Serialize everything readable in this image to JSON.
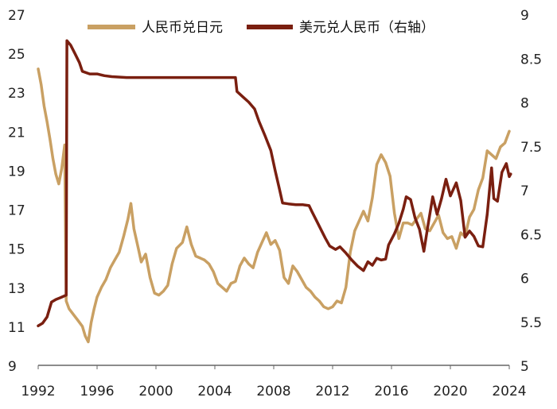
{
  "chart_data": {
    "type": "line",
    "title": "",
    "xlabel": "",
    "ylabel": "",
    "y2label": "",
    "xlim": [
      1992,
      2024
    ],
    "ylim": [
      9,
      27
    ],
    "y2lim": [
      5,
      9
    ],
    "x_ticks": [
      "1992",
      "1996",
      "2000",
      "2004",
      "2008",
      "2012",
      "2016",
      "2020",
      "2024"
    ],
    "y_ticks": [
      "9",
      "11",
      "13",
      "15",
      "17",
      "19",
      "21",
      "23",
      "25",
      "27"
    ],
    "y2_ticks": [
      "5",
      "5.5",
      "6",
      "6.5",
      "7",
      "7.5",
      "8",
      "8.5",
      "9"
    ],
    "legend_position": "top",
    "series": [
      {
        "name": "人民币兑日元",
        "axis": "left",
        "color": "#C9A063",
        "points": [
          [
            1992.0,
            24.2
          ],
          [
            1992.2,
            23.4
          ],
          [
            1992.4,
            22.3
          ],
          [
            1992.6,
            21.5
          ],
          [
            1992.8,
            20.6
          ],
          [
            1993.0,
            19.6
          ],
          [
            1993.2,
            18.8
          ],
          [
            1993.4,
            18.3
          ],
          [
            1993.6,
            19.1
          ],
          [
            1993.8,
            20.3
          ],
          [
            1993.9,
            12.3
          ],
          [
            1994.1,
            11.9
          ],
          [
            1994.4,
            11.6
          ],
          [
            1994.7,
            11.3
          ],
          [
            1995.0,
            11.0
          ],
          [
            1995.2,
            10.5
          ],
          [
            1995.4,
            10.2
          ],
          [
            1995.6,
            11.2
          ],
          [
            1995.8,
            11.9
          ],
          [
            1996.0,
            12.5
          ],
          [
            1996.3,
            13.0
          ],
          [
            1996.6,
            13.4
          ],
          [
            1996.9,
            14.0
          ],
          [
            1997.2,
            14.4
          ],
          [
            1997.5,
            14.8
          ],
          [
            1997.8,
            15.6
          ],
          [
            1998.1,
            16.5
          ],
          [
            1998.3,
            17.3
          ],
          [
            1998.5,
            16.0
          ],
          [
            1998.8,
            15.0
          ],
          [
            1999.0,
            14.3
          ],
          [
            1999.3,
            14.7
          ],
          [
            1999.6,
            13.5
          ],
          [
            1999.9,
            12.7
          ],
          [
            2000.2,
            12.6
          ],
          [
            2000.5,
            12.8
          ],
          [
            2000.8,
            13.1
          ],
          [
            2001.1,
            14.2
          ],
          [
            2001.4,
            15.0
          ],
          [
            2001.8,
            15.3
          ],
          [
            2002.1,
            16.1
          ],
          [
            2002.4,
            15.2
          ],
          [
            2002.7,
            14.6
          ],
          [
            2003.0,
            14.5
          ],
          [
            2003.3,
            14.4
          ],
          [
            2003.6,
            14.2
          ],
          [
            2003.9,
            13.8
          ],
          [
            2004.2,
            13.2
          ],
          [
            2004.5,
            13.0
          ],
          [
            2004.8,
            12.8
          ],
          [
            2005.1,
            13.2
          ],
          [
            2005.4,
            13.3
          ],
          [
            2005.7,
            14.1
          ],
          [
            2006.0,
            14.5
          ],
          [
            2006.3,
            14.2
          ],
          [
            2006.6,
            14.0
          ],
          [
            2006.9,
            14.8
          ],
          [
            2007.2,
            15.3
          ],
          [
            2007.5,
            15.8
          ],
          [
            2007.8,
            15.2
          ],
          [
            2008.1,
            15.4
          ],
          [
            2008.4,
            14.9
          ],
          [
            2008.7,
            13.5
          ],
          [
            2009.0,
            13.2
          ],
          [
            2009.3,
            14.1
          ],
          [
            2009.6,
            13.8
          ],
          [
            2009.9,
            13.4
          ],
          [
            2010.2,
            13.0
          ],
          [
            2010.5,
            12.8
          ],
          [
            2010.8,
            12.5
          ],
          [
            2011.1,
            12.3
          ],
          [
            2011.4,
            12.0
          ],
          [
            2011.7,
            11.9
          ],
          [
            2012.0,
            12.0
          ],
          [
            2012.3,
            12.3
          ],
          [
            2012.6,
            12.2
          ],
          [
            2012.9,
            13.0
          ],
          [
            2013.2,
            14.8
          ],
          [
            2013.5,
            15.9
          ],
          [
            2013.8,
            16.4
          ],
          [
            2014.1,
            16.9
          ],
          [
            2014.4,
            16.4
          ],
          [
            2014.7,
            17.6
          ],
          [
            2015.0,
            19.3
          ],
          [
            2015.3,
            19.8
          ],
          [
            2015.6,
            19.4
          ],
          [
            2015.9,
            18.7
          ],
          [
            2016.2,
            16.8
          ],
          [
            2016.5,
            15.5
          ],
          [
            2016.8,
            16.3
          ],
          [
            2017.1,
            16.3
          ],
          [
            2017.4,
            16.2
          ],
          [
            2017.7,
            16.5
          ],
          [
            2018.0,
            16.8
          ],
          [
            2018.3,
            16.0
          ],
          [
            2018.6,
            15.9
          ],
          [
            2018.9,
            16.3
          ],
          [
            2019.2,
            16.7
          ],
          [
            2019.5,
            15.8
          ],
          [
            2019.8,
            15.5
          ],
          [
            2020.1,
            15.6
          ],
          [
            2020.4,
            15.0
          ],
          [
            2020.7,
            15.8
          ],
          [
            2021.0,
            15.6
          ],
          [
            2021.3,
            16.6
          ],
          [
            2021.6,
            17.0
          ],
          [
            2021.9,
            18.0
          ],
          [
            2022.2,
            18.6
          ],
          [
            2022.5,
            20.0
          ],
          [
            2022.8,
            19.8
          ],
          [
            2023.1,
            19.6
          ],
          [
            2023.4,
            20.2
          ],
          [
            2023.7,
            20.4
          ],
          [
            2024.0,
            21.0
          ]
        ]
      },
      {
        "name": "美元兑人民币（右轴）",
        "axis": "right",
        "color": "#7A1F10",
        "points": [
          [
            1992.0,
            5.45
          ],
          [
            1992.3,
            5.48
          ],
          [
            1992.6,
            5.55
          ],
          [
            1992.9,
            5.72
          ],
          [
            1993.2,
            5.75
          ],
          [
            1993.5,
            5.77
          ],
          [
            1993.9,
            5.8
          ],
          [
            1993.95,
            8.7
          ],
          [
            1994.2,
            8.65
          ],
          [
            1994.5,
            8.55
          ],
          [
            1994.8,
            8.45
          ],
          [
            1995.0,
            8.35
          ],
          [
            1995.5,
            8.32
          ],
          [
            1996.0,
            8.32
          ],
          [
            1996.5,
            8.3
          ],
          [
            1997.0,
            8.29
          ],
          [
            1998.0,
            8.28
          ],
          [
            1999.0,
            8.28
          ],
          [
            2000.0,
            8.28
          ],
          [
            2001.0,
            8.28
          ],
          [
            2002.0,
            8.28
          ],
          [
            2003.0,
            8.28
          ],
          [
            2004.0,
            8.28
          ],
          [
            2005.4,
            8.28
          ],
          [
            2005.5,
            8.12
          ],
          [
            2005.9,
            8.06
          ],
          [
            2006.3,
            8.0
          ],
          [
            2006.7,
            7.92
          ],
          [
            2007.0,
            7.78
          ],
          [
            2007.4,
            7.62
          ],
          [
            2007.8,
            7.45
          ],
          [
            2008.1,
            7.22
          ],
          [
            2008.4,
            7.0
          ],
          [
            2008.6,
            6.85
          ],
          [
            2009.0,
            6.84
          ],
          [
            2009.5,
            6.83
          ],
          [
            2010.0,
            6.83
          ],
          [
            2010.4,
            6.82
          ],
          [
            2010.6,
            6.75
          ],
          [
            2010.9,
            6.65
          ],
          [
            2011.2,
            6.55
          ],
          [
            2011.5,
            6.45
          ],
          [
            2011.8,
            6.36
          ],
          [
            2012.2,
            6.32
          ],
          [
            2012.5,
            6.35
          ],
          [
            2012.9,
            6.28
          ],
          [
            2013.3,
            6.2
          ],
          [
            2013.7,
            6.13
          ],
          [
            2014.1,
            6.08
          ],
          [
            2014.4,
            6.18
          ],
          [
            2014.7,
            6.14
          ],
          [
            2015.0,
            6.22
          ],
          [
            2015.3,
            6.2
          ],
          [
            2015.6,
            6.21
          ],
          [
            2015.8,
            6.37
          ],
          [
            2016.2,
            6.5
          ],
          [
            2016.5,
            6.62
          ],
          [
            2016.8,
            6.78
          ],
          [
            2017.0,
            6.92
          ],
          [
            2017.3,
            6.89
          ],
          [
            2017.6,
            6.68
          ],
          [
            2017.9,
            6.55
          ],
          [
            2018.2,
            6.3
          ],
          [
            2018.5,
            6.62
          ],
          [
            2018.8,
            6.92
          ],
          [
            2019.1,
            6.72
          ],
          [
            2019.4,
            6.9
          ],
          [
            2019.7,
            7.12
          ],
          [
            2020.0,
            6.93
          ],
          [
            2020.4,
            7.08
          ],
          [
            2020.7,
            6.88
          ],
          [
            2021.0,
            6.46
          ],
          [
            2021.3,
            6.53
          ],
          [
            2021.6,
            6.47
          ],
          [
            2021.9,
            6.36
          ],
          [
            2022.2,
            6.35
          ],
          [
            2022.5,
            6.72
          ],
          [
            2022.8,
            7.25
          ],
          [
            2022.95,
            6.9
          ],
          [
            2023.2,
            6.87
          ],
          [
            2023.5,
            7.2
          ],
          [
            2023.8,
            7.3
          ],
          [
            2024.0,
            7.15
          ],
          [
            2024.1,
            7.18
          ]
        ]
      }
    ]
  }
}
